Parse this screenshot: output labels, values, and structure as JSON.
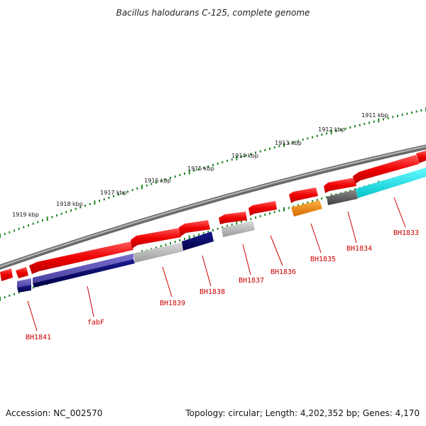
{
  "title": "Bacillus halodurans C-125, complete genome",
  "footer": {
    "accession": "Accession: NC_002570",
    "topology": "Topology: circular; Length: 4,202,352 bp; Genes: 4,170"
  },
  "scale_labels": [
    "1911 kbp",
    "1912 kbp",
    "1913 kbp",
    "1914 kbp",
    "1915 kbp",
    "1916 kbp",
    "1917 kbp",
    "1918 kbp",
    "1919 kbp"
  ],
  "gene_labels": [
    "BH1833",
    "BH1834",
    "BH1835",
    "BH1836",
    "BH1837",
    "BH1838",
    "BH1839",
    "fabF",
    "BH1841"
  ],
  "colors": {
    "forward_gene": "#ee0000",
    "backbone": "#808080",
    "label": "#cc0000",
    "tick": "#228822",
    "navy": "#000066",
    "slate_blue": "#5a50b4",
    "gray_gene": "#b4b4b4",
    "dark_gray_gene": "#5a5a5a",
    "cyan_gene": "#00e6ee",
    "orange_gene": "#ee8800"
  }
}
